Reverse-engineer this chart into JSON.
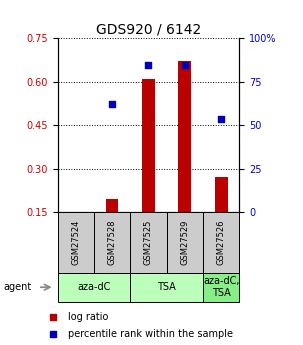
{
  "title": "GDS920 / 6142",
  "samples": [
    "GSM27524",
    "GSM27528",
    "GSM27525",
    "GSM27529",
    "GSM27526"
  ],
  "log_ratio": [
    0.0,
    0.195,
    0.61,
    0.67,
    0.27
  ],
  "percentile_rank_pct": [
    null,
    62,
    84.5,
    84.5,
    53.5
  ],
  "ylim_left": [
    0.15,
    0.75
  ],
  "ylim_right": [
    0,
    100
  ],
  "yticks_left": [
    0.15,
    0.3,
    0.45,
    0.6,
    0.75
  ],
  "ytick_labels_left": [
    "0.15",
    "0.30",
    "0.45",
    "0.60",
    "0.75"
  ],
  "yticks_right": [
    0,
    25,
    50,
    75,
    100
  ],
  "ytick_labels_right": [
    "0",
    "25",
    "50",
    "75",
    "100%"
  ],
  "bar_color": "#bb0000",
  "scatter_color": "#0000bb",
  "agent_labels": [
    "aza-dC",
    "TSA",
    "aza-dC,\nTSA"
  ],
  "agent_groups": [
    [
      0,
      1
    ],
    [
      2,
      3
    ],
    [
      4
    ]
  ],
  "agent_bg_light": "#bbffbb",
  "agent_bg_dark": "#88ee88",
  "sample_bg_color": "#cccccc",
  "bar_width": 0.35,
  "title_fontsize": 10,
  "tick_fontsize": 7,
  "legend_fontsize": 7,
  "sample_fontsize": 6,
  "agent_fontsize": 7
}
